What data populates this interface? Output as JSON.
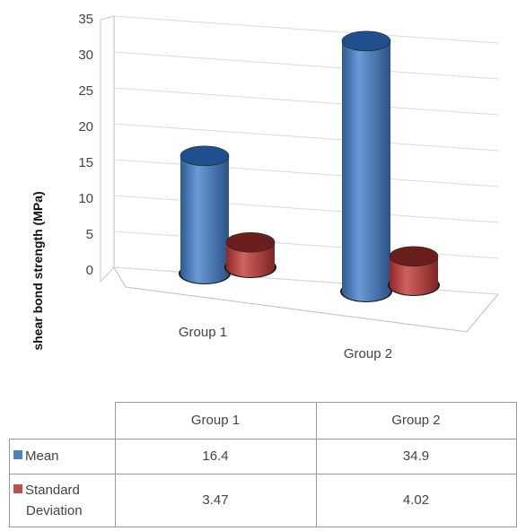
{
  "chart_data": {
    "type": "bar",
    "style": "3d-cylinder",
    "categories": [
      "Group 1",
      "Group 2"
    ],
    "series": [
      {
        "name": "Mean",
        "values": [
          16.4,
          34.9
        ],
        "color": "#4f81bd"
      },
      {
        "name": "Standard Deviation",
        "values": [
          3.47,
          4.02
        ],
        "color": "#c0504d"
      }
    ],
    "title": "",
    "xlabel": "",
    "ylabel": "shear bond strength (MPa)",
    "ylim": [
      0,
      35
    ],
    "yticks": [
      0,
      5,
      10,
      15,
      20,
      25,
      30,
      35
    ],
    "grid": true,
    "legend": "data-table"
  },
  "table": {
    "series_labels": [
      [
        "Mean"
      ],
      [
        "Standard",
        "Deviation"
      ]
    ]
  }
}
